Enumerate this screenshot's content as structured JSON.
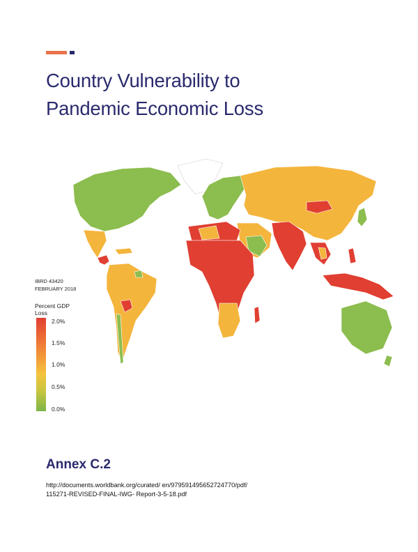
{
  "title": {
    "line1": "Country Vulnerability to",
    "line2": "Pandemic Economic Loss"
  },
  "map_id": {
    "line1": "IBRD 43420",
    "line2": "FEBRUARY 2018"
  },
  "legend": {
    "title": "Percent GDP Loss",
    "ticks": [
      "2.0%",
      "1.5%",
      "1.0%",
      "0.5%",
      "0.0%"
    ],
    "colors": {
      "high": "#e03f32",
      "mid": "#f4b53d",
      "low": "#7db548"
    }
  },
  "annex": "Annex C.2",
  "source": {
    "line1": "http://documents.worldbank.org/curated/ en/979591495652724770/pdf/",
    "line2": "115271-REVISED-FINAL-IWG- Report-3-5-18.pdf"
  },
  "accent_colors": {
    "orange": "#e8734a",
    "navy": "#2a2a6e"
  }
}
